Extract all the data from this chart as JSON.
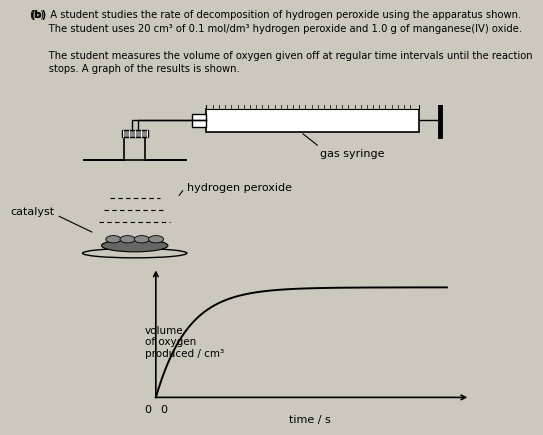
{
  "bg_color": "#cdc8be",
  "curve_color": "#000000",
  "ylabel": "volume\nof oxygen\nproduced / cm³",
  "xlabel": "time / s",
  "label_gas_syringe": "gas syringe",
  "label_hydrogen_peroxide": "hydrogen peroxide",
  "label_catalyst": "catalyst",
  "text_line1": "(b)  A student studies the rate of decomposition of hydrogen peroxide using the apparatus shown.",
  "text_line2": "      The student uses 20 cm³ of 0.1 mol/dm³ hydrogen peroxide and 1.0 g of manganese(IV) oxide.",
  "text_line3": "      The student measures the volume of oxygen given off at regular time intervals until the reaction",
  "text_line4": "      stops. A graph of the results is shown."
}
